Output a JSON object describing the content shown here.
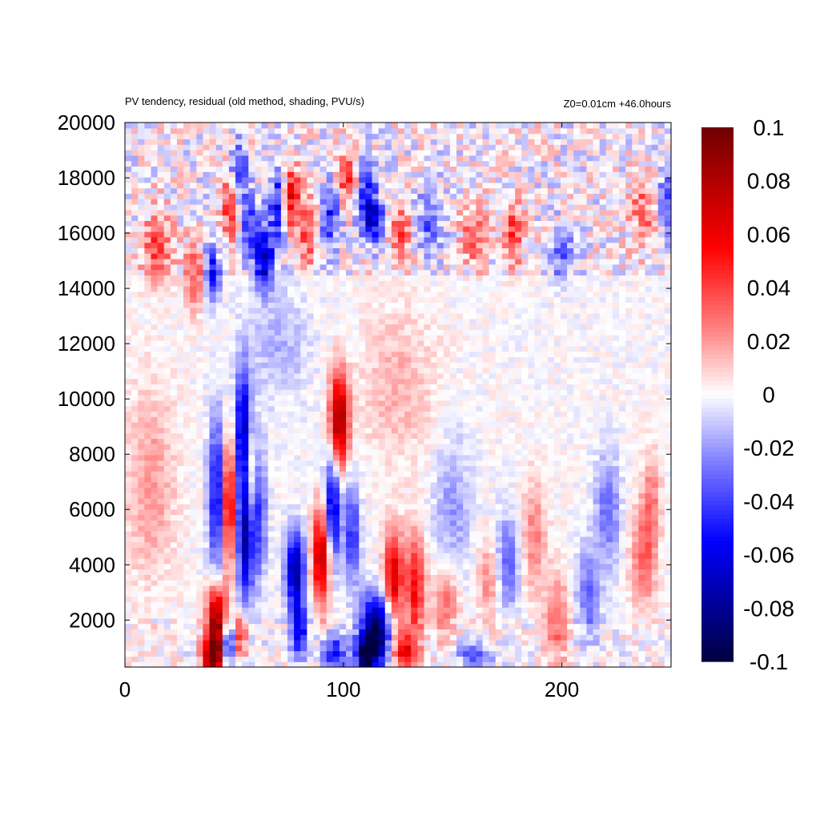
{
  "chart_data": {
    "type": "heatmap",
    "title": "PV tendency, residual (old method, shading, PVU/s)",
    "subtitle": "Z0=0.01cm   +46.0hours",
    "xlabel": "",
    "ylabel": "",
    "xlim": [
      0,
      250
    ],
    "ylim": [
      300,
      20000
    ],
    "x_ticks": [
      0,
      100,
      200
    ],
    "y_ticks": [
      2000,
      4000,
      6000,
      8000,
      10000,
      12000,
      14000,
      16000,
      18000,
      20000
    ],
    "colorbar": {
      "range": [
        -0.1,
        0.1
      ],
      "ticks": [
        0.1,
        0.08,
        0.06,
        0.04,
        0.02,
        0,
        -0.02,
        -0.04,
        -0.06,
        -0.08,
        -0.1
      ],
      "tick_labels": [
        "0.1",
        "0.08",
        "0.06",
        "0.04",
        "0.02",
        "0",
        "-0.02",
        "-0.04",
        "-0.06",
        "-0.08",
        "-0.1"
      ],
      "colormap": [
        {
          "v": -0.1,
          "color": "#000040"
        },
        {
          "v": -0.075,
          "color": "#0000a8"
        },
        {
          "v": -0.055,
          "color": "#0000ff"
        },
        {
          "v": -0.025,
          "color": "#8080ff"
        },
        {
          "v": 0,
          "color": "#ffffff"
        },
        {
          "v": 0.025,
          "color": "#ff8080"
        },
        {
          "v": 0.055,
          "color": "#ff0000"
        },
        {
          "v": 0.075,
          "color": "#c00000"
        },
        {
          "v": 0.1,
          "color": "#700000"
        }
      ]
    },
    "grid": false,
    "features": [
      {
        "x": 15,
        "y": 15500,
        "value": 0.04,
        "sx": 5,
        "sy": 900
      },
      {
        "x": 32,
        "y": 14500,
        "value": 0.035,
        "sx": 3,
        "sy": 900
      },
      {
        "x": 40,
        "y": 14600,
        "value": -0.055,
        "sx": 2.5,
        "sy": 700
      },
      {
        "x": 48,
        "y": 17000,
        "value": 0.05,
        "sx": 2.5,
        "sy": 800
      },
      {
        "x": 52,
        "y": 18200,
        "value": -0.05,
        "sx": 2.5,
        "sy": 700
      },
      {
        "x": 58,
        "y": 16200,
        "value": -0.045,
        "sx": 3,
        "sy": 900
      },
      {
        "x": 64,
        "y": 15000,
        "value": -0.065,
        "sx": 3,
        "sy": 700
      },
      {
        "x": 70,
        "y": 17000,
        "value": -0.055,
        "sx": 3,
        "sy": 900
      },
      {
        "x": 76,
        "y": 17300,
        "value": 0.065,
        "sx": 2.5,
        "sy": 800
      },
      {
        "x": 84,
        "y": 16200,
        "value": 0.04,
        "sx": 3,
        "sy": 900
      },
      {
        "x": 94,
        "y": 16600,
        "value": -0.045,
        "sx": 3,
        "sy": 800
      },
      {
        "x": 102,
        "y": 18000,
        "value": 0.05,
        "sx": 3,
        "sy": 700
      },
      {
        "x": 110,
        "y": 17400,
        "value": -0.05,
        "sx": 3,
        "sy": 800
      },
      {
        "x": 114,
        "y": 16500,
        "value": -0.06,
        "sx": 3,
        "sy": 600
      },
      {
        "x": 126,
        "y": 16000,
        "value": 0.04,
        "sx": 3,
        "sy": 800
      },
      {
        "x": 140,
        "y": 16500,
        "value": -0.035,
        "sx": 4,
        "sy": 800
      },
      {
        "x": 160,
        "y": 16000,
        "value": 0.035,
        "sx": 4,
        "sy": 800
      },
      {
        "x": 178,
        "y": 16000,
        "value": 0.04,
        "sx": 3,
        "sy": 800
      },
      {
        "x": 200,
        "y": 15300,
        "value": -0.03,
        "sx": 4,
        "sy": 700
      },
      {
        "x": 237,
        "y": 16800,
        "value": 0.03,
        "sx": 4,
        "sy": 900
      },
      {
        "x": 248,
        "y": 17300,
        "value": -0.03,
        "sx": 3,
        "sy": 900
      },
      {
        "x": 54,
        "y": 9000,
        "value": -0.065,
        "sx": 2.5,
        "sy": 1600
      },
      {
        "x": 43,
        "y": 6500,
        "value": -0.075,
        "sx": 3,
        "sy": 1900
      },
      {
        "x": 47,
        "y": 6300,
        "value": 0.09,
        "sx": 2.5,
        "sy": 1700
      },
      {
        "x": 55,
        "y": 5500,
        "value": -0.09,
        "sx": 2.5,
        "sy": 1900
      },
      {
        "x": 57,
        "y": 7000,
        "value": 0.06,
        "sx": 2.5,
        "sy": 1300
      },
      {
        "x": 61,
        "y": 6000,
        "value": -0.05,
        "sx": 2.5,
        "sy": 1700
      },
      {
        "x": 98,
        "y": 9200,
        "value": 0.09,
        "sx": 3,
        "sy": 1200
      },
      {
        "x": 95,
        "y": 6000,
        "value": -0.07,
        "sx": 2.5,
        "sy": 1500
      },
      {
        "x": 104,
        "y": 5200,
        "value": -0.045,
        "sx": 2.5,
        "sy": 1300
      },
      {
        "x": 78,
        "y": 3800,
        "value": -0.08,
        "sx": 3,
        "sy": 1000
      },
      {
        "x": 90,
        "y": 4300,
        "value": 0.08,
        "sx": 3,
        "sy": 1200
      },
      {
        "x": 80,
        "y": 1600,
        "value": -0.06,
        "sx": 2.5,
        "sy": 700
      },
      {
        "x": 42,
        "y": 2000,
        "value": 0.09,
        "sx": 3,
        "sy": 900
      },
      {
        "x": 40,
        "y": 700,
        "value": 0.1,
        "sx": 3,
        "sy": 500
      },
      {
        "x": 47,
        "y": 1200,
        "value": -0.06,
        "sx": 2,
        "sy": 600
      },
      {
        "x": 53,
        "y": 1500,
        "value": 0.05,
        "sx": 2,
        "sy": 600
      },
      {
        "x": 115,
        "y": 1600,
        "value": -0.1,
        "sx": 5,
        "sy": 900
      },
      {
        "x": 110,
        "y": 600,
        "value": -0.08,
        "sx": 3,
        "sy": 500
      },
      {
        "x": 123,
        "y": 3500,
        "value": 0.07,
        "sx": 3,
        "sy": 1200
      },
      {
        "x": 133,
        "y": 3200,
        "value": 0.055,
        "sx": 3,
        "sy": 1300
      },
      {
        "x": 128,
        "y": 900,
        "value": 0.06,
        "sx": 4,
        "sy": 500
      },
      {
        "x": 96,
        "y": 800,
        "value": -0.05,
        "sx": 4,
        "sy": 500
      },
      {
        "x": 147,
        "y": 2600,
        "value": 0.03,
        "sx": 4,
        "sy": 1000
      },
      {
        "x": 160,
        "y": 700,
        "value": -0.04,
        "sx": 5,
        "sy": 400
      },
      {
        "x": 175,
        "y": 4000,
        "value": -0.035,
        "sx": 4,
        "sy": 1200
      },
      {
        "x": 187,
        "y": 5000,
        "value": 0.025,
        "sx": 4,
        "sy": 1500
      },
      {
        "x": 198,
        "y": 2000,
        "value": 0.03,
        "sx": 4,
        "sy": 1200
      },
      {
        "x": 212,
        "y": 3000,
        "value": -0.03,
        "sx": 4,
        "sy": 1200
      },
      {
        "x": 221,
        "y": 6000,
        "value": -0.03,
        "sx": 4,
        "sy": 1400
      },
      {
        "x": 237,
        "y": 4200,
        "value": 0.03,
        "sx": 4,
        "sy": 1300
      },
      {
        "x": 241,
        "y": 6300,
        "value": 0.025,
        "sx": 3,
        "sy": 1300
      },
      {
        "x": 150,
        "y": 6000,
        "value": -0.02,
        "sx": 6,
        "sy": 1800
      },
      {
        "x": 167,
        "y": 3500,
        "value": 0.025,
        "sx": 4,
        "sy": 1000
      },
      {
        "x": 12,
        "y": 7000,
        "value": 0.02,
        "sx": 8,
        "sy": 2500
      },
      {
        "x": 70,
        "y": 12000,
        "value": -0.015,
        "sx": 10,
        "sy": 1500
      },
      {
        "x": 125,
        "y": 10500,
        "value": 0.015,
        "sx": 12,
        "sy": 2000
      }
    ]
  }
}
